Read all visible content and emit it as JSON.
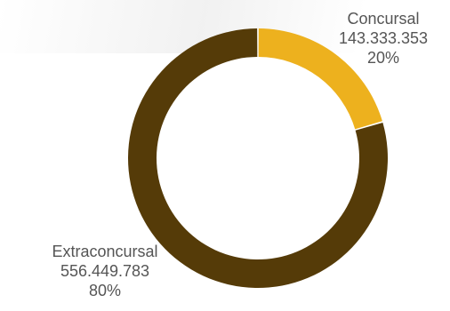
{
  "chart_data": {
    "type": "pie",
    "variant": "donut",
    "slices": [
      {
        "label": "Concursal",
        "value_text": "143.333.353",
        "value": 143333353,
        "percent_text": "20%",
        "color": "#EDB11E"
      },
      {
        "label": "Extraconcursal",
        "value_text": "556.449.783",
        "value": 556449783,
        "percent_text": "80%",
        "color": "#553B08"
      }
    ]
  }
}
